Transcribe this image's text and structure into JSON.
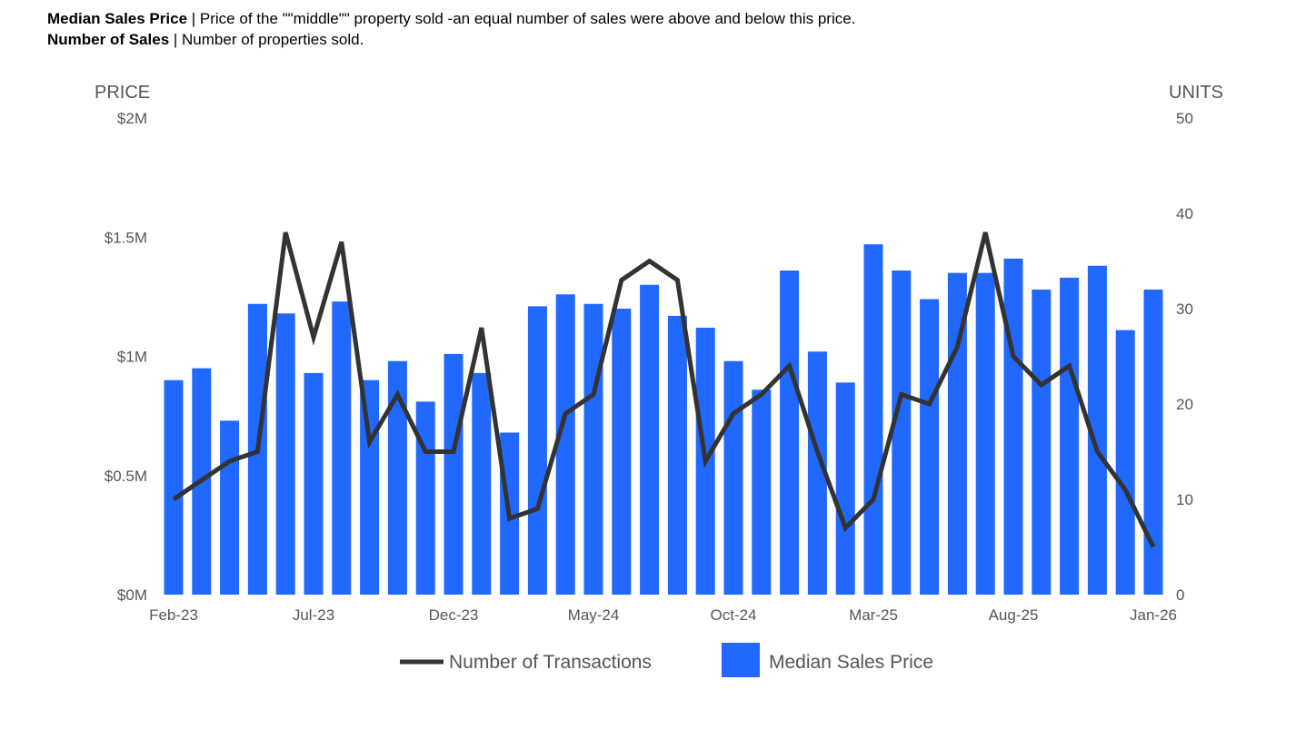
{
  "definitions": [
    {
      "term": "Median Sales Price",
      "separator": " | ",
      "text": "Price of the \"\"middle\"\" property sold -an equal number of sales were above and below this price."
    },
    {
      "term": "Number of Sales",
      "separator": " | ",
      "text": "Number of properties sold."
    }
  ],
  "chart_data": {
    "type": "bar",
    "left_axis_title": "PRICE",
    "right_axis_title": "UNITS",
    "left_ticks": [
      "$0M",
      "$0.5M",
      "$1M",
      "$1.5M",
      "$2M"
    ],
    "left_tick_values": [
      0,
      0.5,
      1,
      1.5,
      2
    ],
    "right_ticks": [
      "0",
      "10",
      "20",
      "30",
      "40",
      "50"
    ],
    "right_tick_values": [
      0,
      10,
      20,
      30,
      40,
      50
    ],
    "ylim_left": [
      0,
      2
    ],
    "ylim_right": [
      0,
      50
    ],
    "x_tick_labels": [
      "Feb-23",
      "Jul-23",
      "Dec-23",
      "May-24",
      "Oct-24",
      "Mar-25",
      "Aug-25",
      "Jan-26"
    ],
    "x_tick_indices": [
      0,
      5,
      10,
      15,
      20,
      25,
      30,
      35
    ],
    "categories": [
      "Feb-23",
      "Mar-23",
      "Apr-23",
      "May-23",
      "Jun-23",
      "Jul-23",
      "Aug-23",
      "Sep-23",
      "Oct-23",
      "Nov-23",
      "Dec-23",
      "Jan-24",
      "Feb-24",
      "Mar-24",
      "Apr-24",
      "May-24",
      "Jun-24",
      "Jul-24",
      "Aug-24",
      "Sep-24",
      "Oct-24",
      "Nov-24",
      "Dec-24",
      "Jan-25",
      "Feb-25",
      "Mar-25",
      "Apr-25",
      "May-25",
      "Jun-25",
      "Jul-25",
      "Aug-25",
      "Sep-25",
      "Oct-25",
      "Nov-25",
      "Dec-25",
      "Jan-26"
    ],
    "series": [
      {
        "name": "Median Sales Price",
        "kind": "bar",
        "axis": "left",
        "color": "#2168ff",
        "values": [
          0.9,
          0.95,
          0.73,
          1.22,
          1.18,
          0.93,
          1.23,
          0.9,
          0.98,
          0.81,
          1.01,
          0.93,
          0.68,
          1.21,
          1.26,
          1.22,
          1.2,
          1.3,
          1.17,
          1.12,
          0.98,
          0.86,
          1.36,
          1.02,
          0.89,
          1.47,
          1.36,
          1.24,
          1.35,
          1.35,
          1.41,
          1.28,
          1.33,
          1.38,
          1.11,
          1.28
        ]
      },
      {
        "name": "Number of Transactions",
        "kind": "line",
        "axis": "right",
        "color": "#333333",
        "values": [
          10,
          12,
          14,
          15,
          38,
          27,
          37,
          16,
          21,
          15,
          15,
          28,
          8,
          9,
          19,
          21,
          33,
          35,
          33,
          14,
          19,
          21,
          24,
          15,
          7,
          10,
          21,
          20,
          26,
          38,
          25,
          22,
          24,
          15,
          11,
          5
        ]
      }
    ],
    "legend": [
      {
        "name": "Number of Transactions",
        "kind": "line"
      },
      {
        "name": "Median Sales Price",
        "kind": "bar"
      }
    ],
    "legend_position": "bottom",
    "grid": false
  }
}
